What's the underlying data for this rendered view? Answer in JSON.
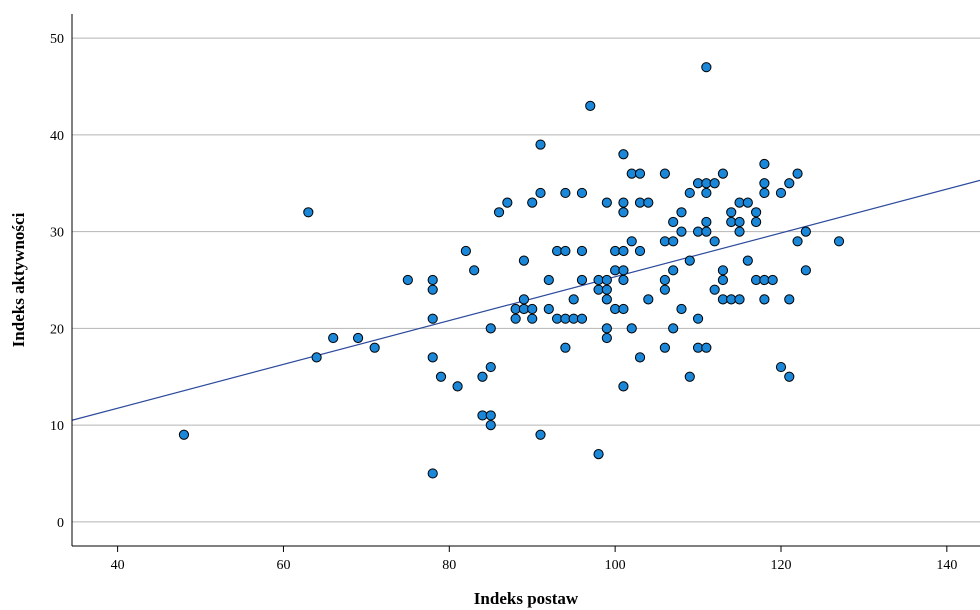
{
  "chart_data": {
    "type": "scatter",
    "title": "",
    "xlabel": "Indeks postaw",
    "ylabel": "Indeks aktywności",
    "xlim": [
      34.5,
      144
    ],
    "ylim": [
      -2.5,
      52.5
    ],
    "xticks": [
      40,
      60,
      80,
      100,
      120,
      140
    ],
    "yticks": [
      0,
      10,
      20,
      30,
      40,
      50
    ],
    "xtick_labels": [
      "40",
      "60",
      "80",
      "100",
      "120",
      "140"
    ],
    "ytick_labels": [
      "0",
      "10",
      "20",
      "30",
      "40",
      "50"
    ],
    "grid": "horizontal",
    "legend": "none",
    "colors": {
      "point_fill": "#1a87d9",
      "point_edge": "#000000",
      "fit_line": "#2c4a9c",
      "grid": "#b4b4b4",
      "axis": "#000000"
    },
    "fit_line": {
      "x": [
        34.5,
        144
      ],
      "y": [
        10.5,
        35.3
      ]
    },
    "points": [
      {
        "x": 48,
        "y": 9
      },
      {
        "x": 63,
        "y": 32
      },
      {
        "x": 64,
        "y": 17
      },
      {
        "x": 66,
        "y": 19
      },
      {
        "x": 69,
        "y": 19
      },
      {
        "x": 71,
        "y": 18
      },
      {
        "x": 75,
        "y": 25
      },
      {
        "x": 78,
        "y": 25
      },
      {
        "x": 78,
        "y": 24
      },
      {
        "x": 78,
        "y": 21
      },
      {
        "x": 78,
        "y": 17
      },
      {
        "x": 78,
        "y": 5
      },
      {
        "x": 79,
        "y": 15
      },
      {
        "x": 81,
        "y": 14
      },
      {
        "x": 82,
        "y": 28
      },
      {
        "x": 83,
        "y": 26
      },
      {
        "x": 84,
        "y": 15
      },
      {
        "x": 84,
        "y": 11
      },
      {
        "x": 85,
        "y": 11
      },
      {
        "x": 85,
        "y": 10
      },
      {
        "x": 85,
        "y": 16
      },
      {
        "x": 85,
        "y": 20
      },
      {
        "x": 86,
        "y": 32
      },
      {
        "x": 87,
        "y": 33
      },
      {
        "x": 88,
        "y": 22
      },
      {
        "x": 88,
        "y": 21
      },
      {
        "x": 89,
        "y": 27
      },
      {
        "x": 89,
        "y": 23
      },
      {
        "x": 89,
        "y": 22
      },
      {
        "x": 90,
        "y": 22
      },
      {
        "x": 90,
        "y": 21
      },
      {
        "x": 90,
        "y": 33
      },
      {
        "x": 91,
        "y": 39
      },
      {
        "x": 91,
        "y": 34
      },
      {
        "x": 91,
        "y": 9
      },
      {
        "x": 92,
        "y": 25
      },
      {
        "x": 92,
        "y": 22
      },
      {
        "x": 93,
        "y": 28
      },
      {
        "x": 93,
        "y": 21
      },
      {
        "x": 94,
        "y": 34
      },
      {
        "x": 94,
        "y": 28
      },
      {
        "x": 94,
        "y": 21
      },
      {
        "x": 94,
        "y": 18
      },
      {
        "x": 95,
        "y": 23
      },
      {
        "x": 95,
        "y": 21
      },
      {
        "x": 96,
        "y": 34
      },
      {
        "x": 96,
        "y": 28
      },
      {
        "x": 96,
        "y": 25
      },
      {
        "x": 96,
        "y": 21
      },
      {
        "x": 97,
        "y": 43
      },
      {
        "x": 98,
        "y": 25
      },
      {
        "x": 98,
        "y": 24
      },
      {
        "x": 98,
        "y": 7
      },
      {
        "x": 99,
        "y": 33
      },
      {
        "x": 99,
        "y": 25
      },
      {
        "x": 99,
        "y": 24
      },
      {
        "x": 99,
        "y": 23
      },
      {
        "x": 99,
        "y": 20
      },
      {
        "x": 99,
        "y": 19
      },
      {
        "x": 100,
        "y": 28
      },
      {
        "x": 100,
        "y": 26
      },
      {
        "x": 100,
        "y": 22
      },
      {
        "x": 101,
        "y": 38
      },
      {
        "x": 101,
        "y": 33
      },
      {
        "x": 101,
        "y": 32
      },
      {
        "x": 101,
        "y": 28
      },
      {
        "x": 101,
        "y": 26
      },
      {
        "x": 101,
        "y": 25
      },
      {
        "x": 101,
        "y": 22
      },
      {
        "x": 101,
        "y": 14
      },
      {
        "x": 102,
        "y": 36
      },
      {
        "x": 102,
        "y": 29
      },
      {
        "x": 102,
        "y": 20
      },
      {
        "x": 103,
        "y": 36
      },
      {
        "x": 103,
        "y": 33
      },
      {
        "x": 103,
        "y": 28
      },
      {
        "x": 103,
        "y": 17
      },
      {
        "x": 104,
        "y": 33
      },
      {
        "x": 104,
        "y": 23
      },
      {
        "x": 106,
        "y": 36
      },
      {
        "x": 106,
        "y": 29
      },
      {
        "x": 106,
        "y": 25
      },
      {
        "x": 106,
        "y": 24
      },
      {
        "x": 106,
        "y": 18
      },
      {
        "x": 107,
        "y": 31
      },
      {
        "x": 107,
        "y": 29
      },
      {
        "x": 107,
        "y": 26
      },
      {
        "x": 107,
        "y": 20
      },
      {
        "x": 108,
        "y": 32
      },
      {
        "x": 108,
        "y": 30
      },
      {
        "x": 108,
        "y": 22
      },
      {
        "x": 109,
        "y": 34
      },
      {
        "x": 109,
        "y": 27
      },
      {
        "x": 109,
        "y": 15
      },
      {
        "x": 110,
        "y": 35
      },
      {
        "x": 110,
        "y": 30
      },
      {
        "x": 110,
        "y": 21
      },
      {
        "x": 110,
        "y": 18
      },
      {
        "x": 111,
        "y": 47
      },
      {
        "x": 111,
        "y": 35
      },
      {
        "x": 111,
        "y": 34
      },
      {
        "x": 111,
        "y": 31
      },
      {
        "x": 111,
        "y": 30
      },
      {
        "x": 111,
        "y": 18
      },
      {
        "x": 112,
        "y": 35
      },
      {
        "x": 112,
        "y": 29
      },
      {
        "x": 112,
        "y": 24
      },
      {
        "x": 113,
        "y": 36
      },
      {
        "x": 113,
        "y": 26
      },
      {
        "x": 113,
        "y": 25
      },
      {
        "x": 113,
        "y": 23
      },
      {
        "x": 114,
        "y": 32
      },
      {
        "x": 114,
        "y": 31
      },
      {
        "x": 114,
        "y": 23
      },
      {
        "x": 115,
        "y": 33
      },
      {
        "x": 115,
        "y": 31
      },
      {
        "x": 115,
        "y": 30
      },
      {
        "x": 115,
        "y": 23
      },
      {
        "x": 116,
        "y": 33
      },
      {
        "x": 116,
        "y": 27
      },
      {
        "x": 117,
        "y": 32
      },
      {
        "x": 117,
        "y": 31
      },
      {
        "x": 117,
        "y": 25
      },
      {
        "x": 118,
        "y": 37
      },
      {
        "x": 118,
        "y": 35
      },
      {
        "x": 118,
        "y": 34
      },
      {
        "x": 118,
        "y": 25
      },
      {
        "x": 118,
        "y": 23
      },
      {
        "x": 119,
        "y": 25
      },
      {
        "x": 120,
        "y": 34
      },
      {
        "x": 120,
        "y": 16
      },
      {
        "x": 121,
        "y": 35
      },
      {
        "x": 121,
        "y": 23
      },
      {
        "x": 121,
        "y": 15
      },
      {
        "x": 122,
        "y": 36
      },
      {
        "x": 122,
        "y": 29
      },
      {
        "x": 123,
        "y": 30
      },
      {
        "x": 123,
        "y": 26
      },
      {
        "x": 127,
        "y": 29
      }
    ]
  }
}
